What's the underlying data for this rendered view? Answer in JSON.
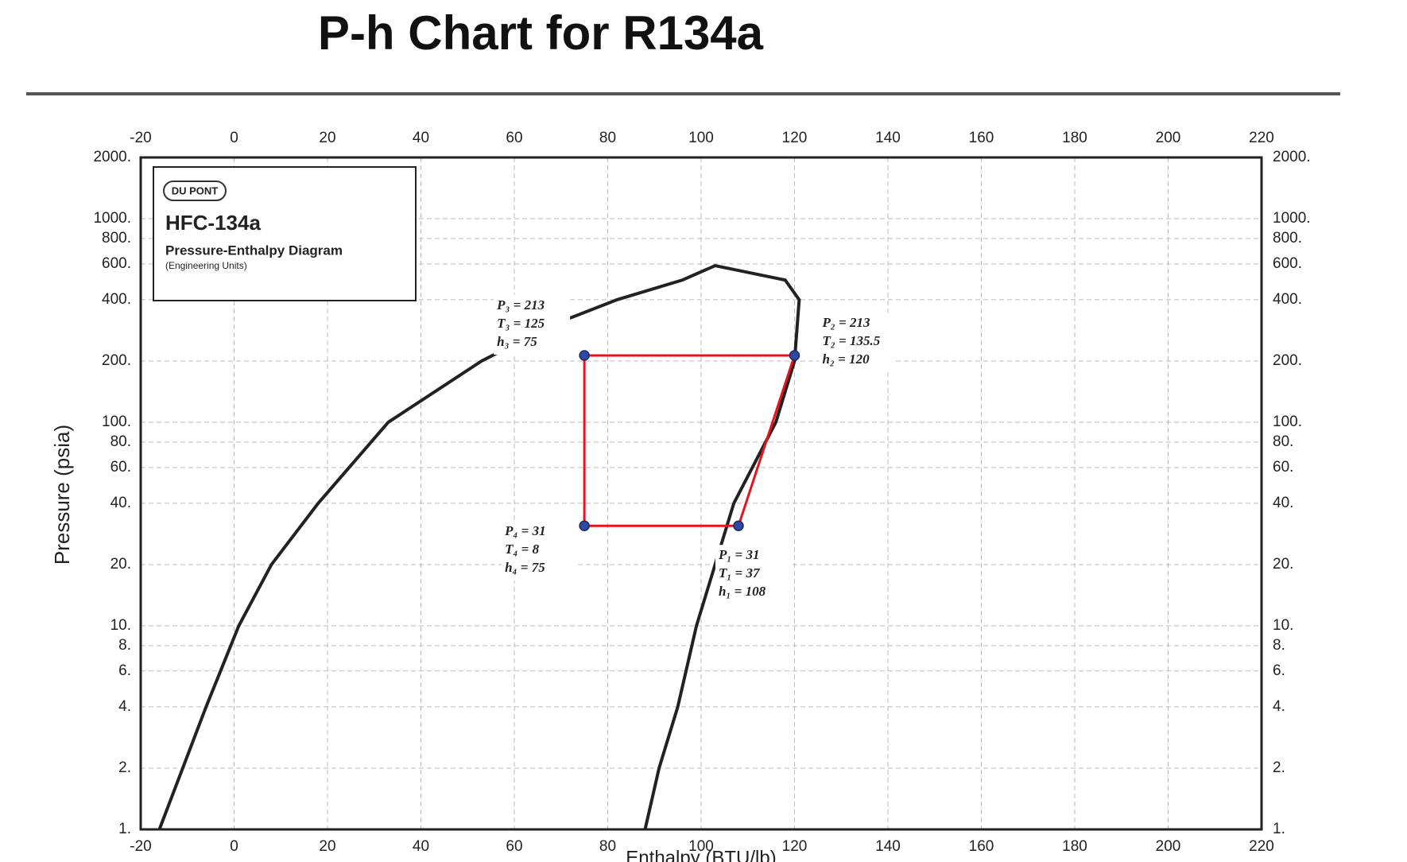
{
  "chart_data": {
    "type": "line",
    "title": "P-h Chart for R134a",
    "x_label": "Enthalpy (BTU/lb)",
    "y_label": "Pressure (psia)",
    "inset": {
      "logo": "DU PONT",
      "name": "HFC-134a",
      "subtitle": "Pressure-Enthalpy Diagram",
      "note": "(Engineering Units)"
    },
    "log_y": true,
    "grid": true,
    "xlim": [
      -20,
      220
    ],
    "xticks": [
      -20,
      0,
      20,
      40,
      60,
      80,
      100,
      120,
      140,
      160,
      180,
      200,
      220
    ],
    "ylim": [
      1,
      2000
    ],
    "yticks": [
      {
        "value": 1,
        "label": "1."
      },
      {
        "value": 2,
        "label": "2."
      },
      {
        "value": 4,
        "label": "4."
      },
      {
        "value": 6,
        "label": "6."
      },
      {
        "value": 8,
        "label": "8."
      },
      {
        "value": 10,
        "label": "10."
      },
      {
        "value": 20,
        "label": "20."
      },
      {
        "value": 40,
        "label": "40."
      },
      {
        "value": 60,
        "label": "60."
      },
      {
        "value": 80,
        "label": "80."
      },
      {
        "value": 100,
        "label": "100."
      },
      {
        "value": 200,
        "label": "200."
      },
      {
        "value": 400,
        "label": "400."
      },
      {
        "value": 600,
        "label": "600."
      },
      {
        "value": 800,
        "label": "800."
      },
      {
        "value": 1000,
        "label": "1000."
      },
      {
        "value": 2000,
        "label": "2000."
      }
    ],
    "series": [
      {
        "color": "#e8141c",
        "marker_color": "#2b4aa0",
        "closed": true,
        "x": [
          108,
          120,
          75,
          75
        ],
        "values": [
          31,
          213,
          213,
          31
        ]
      },
      {
        "color": "#222222",
        "x": [
          -16,
          -11,
          -6,
          1,
          8,
          18,
          33,
          53,
          68,
          82,
          96,
          103,
          118,
          121,
          120,
          116,
          107,
          103,
          99,
          95,
          91,
          88
        ],
        "values": [
          1,
          2,
          4,
          10,
          20,
          40,
          100,
          200,
          300,
          400,
          500,
          588,
          500,
          400,
          200,
          100,
          40,
          20,
          10,
          4,
          2,
          1
        ]
      }
    ],
    "annotations": [
      [
        "P₁ = 31",
        "T₁ = 37",
        "h₁ = 108"
      ],
      [
        "P₂ = 213",
        "T₂ = 135.5",
        "h₂ = 120"
      ],
      [
        "P₃ = 213",
        "T₃ = 125",
        "h₃ = 75"
      ],
      [
        "P₄ = 31",
        "T₄ = 8",
        "h₄ = 75"
      ]
    ]
  }
}
